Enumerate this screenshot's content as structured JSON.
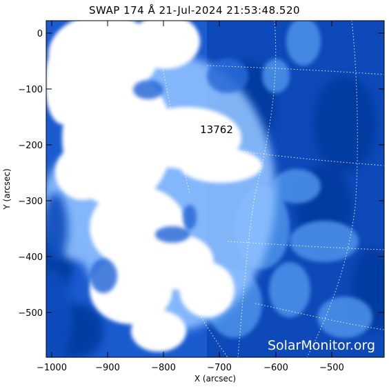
{
  "title": "SWAP 174 Å 21-Jul-2024 21:53:48.520",
  "xlabel": "X (arcsec)",
  "ylabel": "Y (arcsec)",
  "x_ticks": [
    "−1000",
    "−900",
    "−800",
    "−700",
    "−600",
    "−500"
  ],
  "y_ticks": [
    "0",
    "−100",
    "−200",
    "−300",
    "−400",
    "−500"
  ],
  "region_label": "13762",
  "watermark": "SolarMonitor.org",
  "colors": {
    "deep": "#003a9e",
    "mid": "#3a7fe0",
    "bright": "#ffffff"
  }
}
